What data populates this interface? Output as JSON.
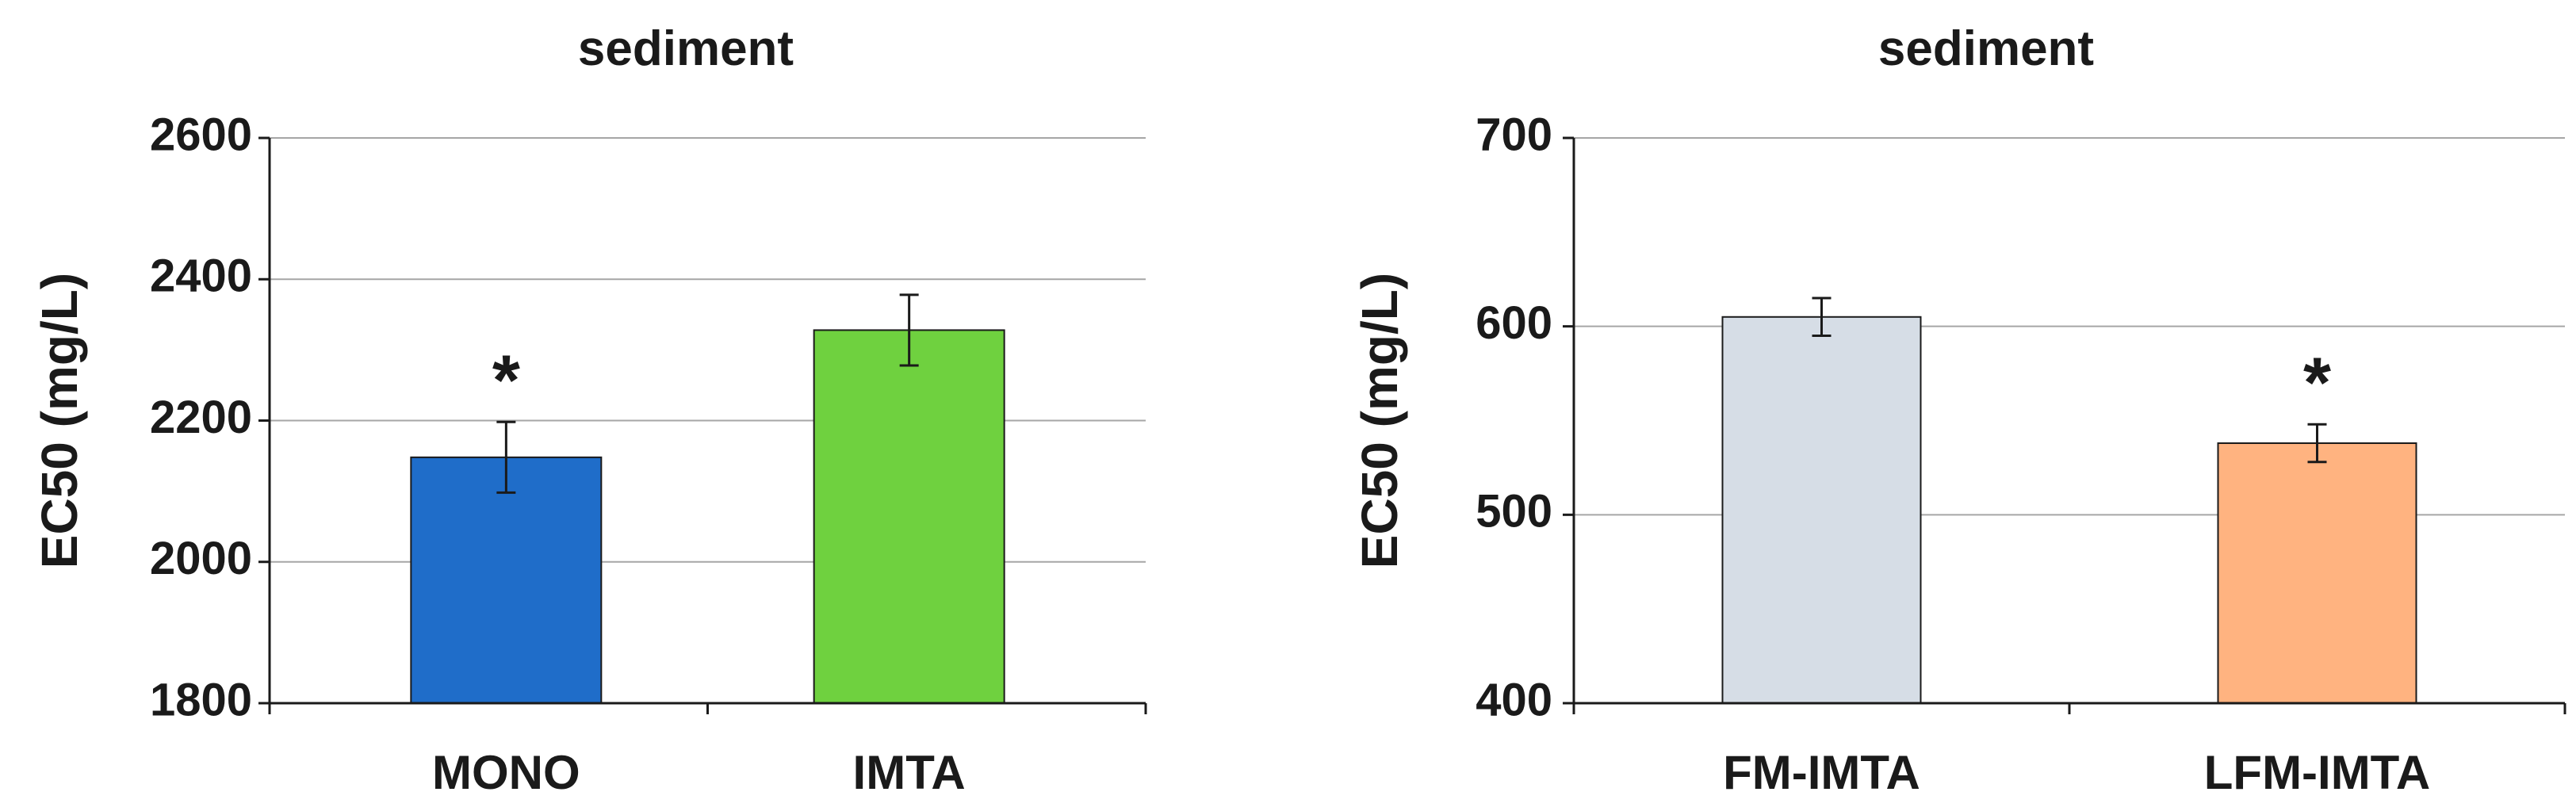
{
  "chart_data": [
    {
      "type": "bar",
      "title": "sediment",
      "xlabel": "",
      "ylabel": "EC50 (mg/L)",
      "ylim": [
        1800,
        2600
      ],
      "yticks": [
        1800,
        2000,
        2200,
        2400,
        2600
      ],
      "grid": true,
      "categories": [
        "MONO",
        "IMTA"
      ],
      "values": [
        2148,
        2328
      ],
      "errors": [
        50,
        50
      ],
      "colors": [
        "#1f6dc9",
        "#6fd13f"
      ],
      "significance": [
        "*",
        ""
      ]
    },
    {
      "type": "bar",
      "title": "sediment",
      "xlabel": "",
      "ylabel": "EC50 (mg/L)",
      "ylim": [
        400,
        700
      ],
      "yticks": [
        400,
        500,
        600,
        700
      ],
      "grid": true,
      "categories": [
        "FM-IMTA",
        "LFM-IMTA"
      ],
      "values": [
        605,
        538
      ],
      "errors": [
        10,
        10
      ],
      "colors": [
        "#d6dde6",
        "#ffb380"
      ],
      "significance": [
        "",
        "*"
      ]
    }
  ]
}
